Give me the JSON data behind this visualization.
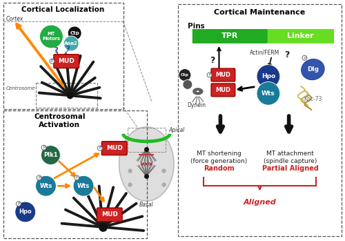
{
  "title_left": "Cortical Localization",
  "title_right": "Cortical Maintenance",
  "subtitle_ca": "Centrosomal\nActivation",
  "label_cortex": "Cortex",
  "label_centrosome": "Centrosome",
  "label_apical": "Apical",
  "label_basal": "Basal",
  "label_pins": "Pins",
  "label_tpr": "TPR",
  "label_linker": "Linker",
  "label_mud": "MUD",
  "label_hpo": "Hpo",
  "label_wts": "Wts",
  "label_dlg": "Dlg",
  "label_khc73": "Khc-73",
  "label_dynein": "Dynein",
  "label_actin_ferm": "Actin/FERM",
  "label_mt_motors": "MT\nMotors",
  "label_ctp": "Ctp",
  "label_ana2": "Ana2",
  "label_plk1": "Plk1",
  "label_mt_shortening": "MT shortening\n(force generation)",
  "label_mt_attachment": "MT attachment\n(spindle capture)",
  "label_random": "Random",
  "label_partial": "Partial Aligned",
  "label_aligned": "Aligned",
  "bg_color": "#ffffff",
  "mud_color": "#cc2222",
  "tpr_color": "#22aa22",
  "linker_color": "#66dd22",
  "hpo_color": "#1a3a8a",
  "wts_color": "#1a7a9a",
  "mt_motors_color": "#22aa44",
  "ana2_color": "#44aaaa",
  "ctp_color": "#111111",
  "plk1_color": "#226644",
  "hpo2_color": "#1a3a8a",
  "dlg_color": "#3355aa",
  "orange_color": "#ff8800",
  "red_label_color": "#cc2222"
}
